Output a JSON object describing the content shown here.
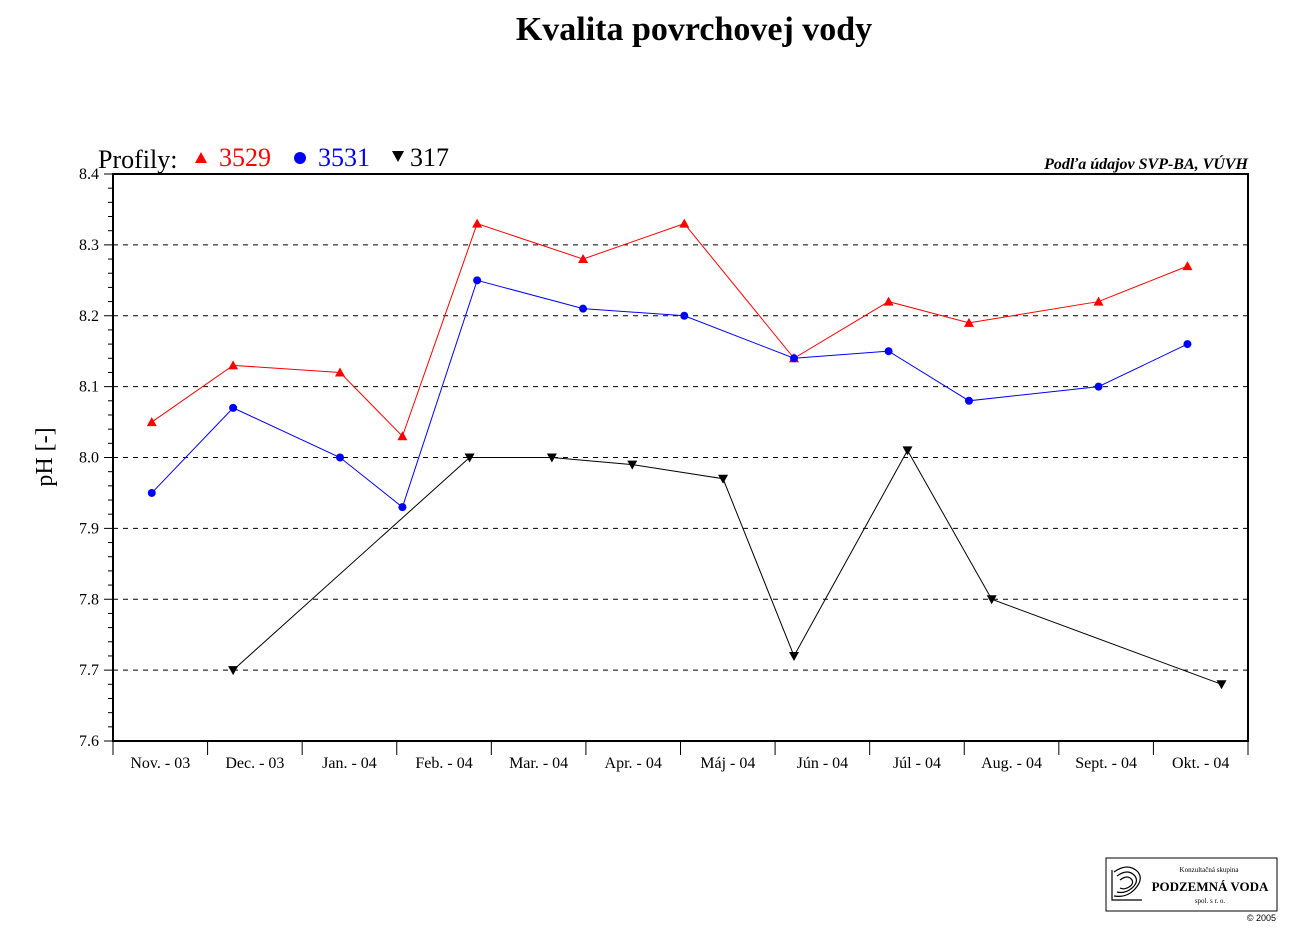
{
  "chart_data": {
    "type": "line",
    "title": "Kvalita povrchovej vody",
    "ylabel": "pH [-]",
    "xlabel": "",
    "ylim": [
      7.6,
      8.4
    ],
    "yticks": [
      "7.6",
      "7.7",
      "7.8",
      "7.9",
      "8.0",
      "8.1",
      "8.2",
      "8.3",
      "8.4"
    ],
    "grid": true,
    "categories": [
      "Nov. - 03",
      "Dec. - 03",
      "Jan. - 04",
      "Feb. - 04",
      "Mar. - 04",
      "Apr. - 04",
      "Máj - 04",
      "Jún - 04",
      "Júl - 04",
      "Aug. - 04",
      "Sept. - 04",
      "Okt. - 04"
    ],
    "legend_label": "Profily:",
    "legend_position": "top-left",
    "source_note": "Podľa údajov SVP-BA, VÚVH",
    "series": [
      {
        "name": "3529",
        "color": "#ff0000",
        "marker": "triangle-up",
        "points": [
          [
            0.41,
            8.05
          ],
          [
            1.27,
            8.13
          ],
          [
            2.4,
            8.12
          ],
          [
            3.06,
            8.03
          ],
          [
            3.85,
            8.33
          ],
          [
            4.97,
            8.28
          ],
          [
            6.04,
            8.33
          ],
          [
            7.2,
            8.14
          ],
          [
            8.2,
            8.22
          ],
          [
            9.05,
            8.19
          ],
          [
            10.42,
            8.22
          ],
          [
            11.36,
            8.27
          ]
        ]
      },
      {
        "name": "3531",
        "color": "#0000ff",
        "marker": "circle",
        "points": [
          [
            0.41,
            7.95
          ],
          [
            1.27,
            8.07
          ],
          [
            2.4,
            8.0
          ],
          [
            3.06,
            7.93
          ],
          [
            3.85,
            8.25
          ],
          [
            4.97,
            8.21
          ],
          [
            6.04,
            8.2
          ],
          [
            7.2,
            8.14
          ],
          [
            8.2,
            8.15
          ],
          [
            9.05,
            8.08
          ],
          [
            10.42,
            8.1
          ],
          [
            11.36,
            8.16
          ]
        ]
      },
      {
        "name": "317",
        "color": "#000000",
        "marker": "triangle-down",
        "points": [
          [
            1.27,
            7.7
          ],
          [
            3.77,
            8.0
          ],
          [
            4.64,
            8.0
          ],
          [
            5.49,
            7.99
          ],
          [
            6.45,
            7.97
          ],
          [
            7.2,
            7.72
          ],
          [
            8.4,
            8.01
          ],
          [
            9.29,
            7.8
          ],
          [
            11.72,
            7.68
          ]
        ]
      }
    ]
  },
  "logo": {
    "line1": "Konzultačná skupina",
    "line2": "PODZEMNÁ VODA",
    "line3": "spol. s r. o.",
    "copyright": "© 2005"
  }
}
